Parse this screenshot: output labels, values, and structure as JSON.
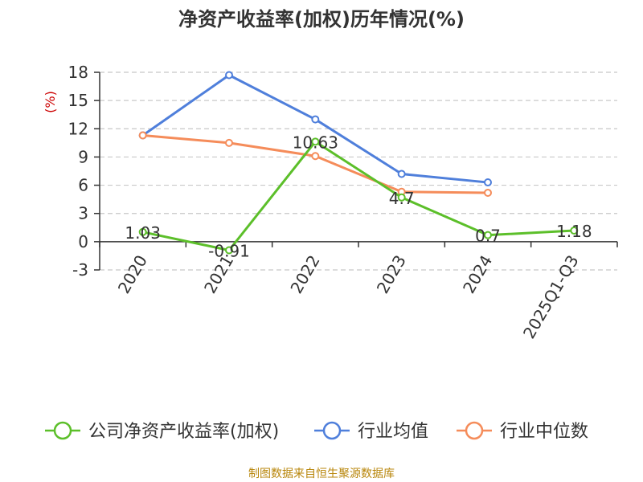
{
  "chart_data": {
    "type": "line",
    "title": "净资产收益率(加权)历年情况(%)",
    "ylabel": "(%)",
    "categories": [
      "2020",
      "2021",
      "2022",
      "2023",
      "2024",
      "2025Q1-Q3"
    ],
    "ylim": [
      -3,
      18
    ],
    "yticks": [
      -3,
      0,
      3,
      6,
      9,
      12,
      15,
      18
    ],
    "grid": true,
    "legend_position": "bottom",
    "series": [
      {
        "name": "公司净资产收益率(加权)",
        "color": "#5cbf2a",
        "values": [
          1.03,
          -0.91,
          10.63,
          4.7,
          0.7,
          1.18
        ],
        "labels": [
          "1.03",
          "-0.91",
          "10.63",
          "4.7",
          "0.7",
          "1.18"
        ]
      },
      {
        "name": "行业均值",
        "color": "#4f7fdb",
        "values": [
          11.3,
          17.7,
          13.0,
          7.2,
          6.3,
          null
        ]
      },
      {
        "name": "行业中位数",
        "color": "#f58c5a",
        "values": [
          11.3,
          10.5,
          9.1,
          5.3,
          5.2,
          null
        ]
      }
    ]
  },
  "source_text": "制图数据来自恒生聚源数据库"
}
